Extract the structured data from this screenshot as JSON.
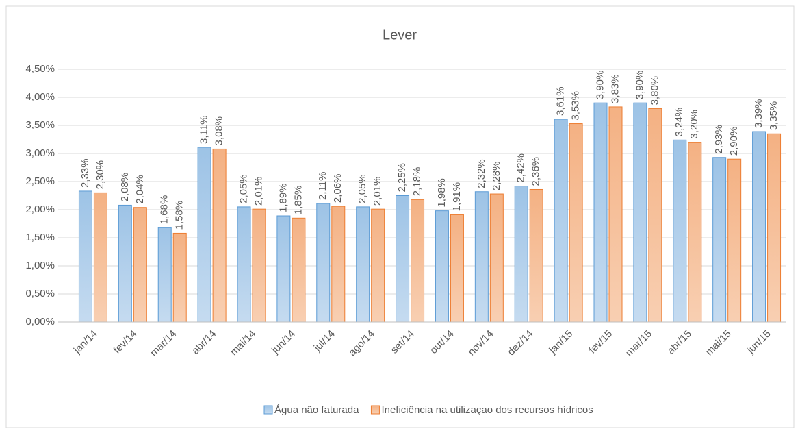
{
  "chart_data": {
    "type": "bar",
    "title": "Lever",
    "categories": [
      "jan/14",
      "fev/14",
      "mar/14",
      "abr/14",
      "mai/14",
      "jun/14",
      "jul/14",
      "ago/14",
      "set/14",
      "out/14",
      "nov/14",
      "dez/14",
      "jan/15",
      "fev/15",
      "mar/15",
      "abr/15",
      "mai/15",
      "jun/15"
    ],
    "series": [
      {
        "name": "Água não faturada",
        "color": "#9dc3e6",
        "values": [
          2.33,
          2.08,
          1.68,
          3.11,
          2.05,
          1.89,
          2.11,
          2.05,
          2.25,
          1.98,
          2.32,
          2.42,
          3.61,
          3.9,
          3.9,
          3.24,
          2.93,
          3.39
        ],
        "value_labels": [
          "2,33%",
          "2,08%",
          "1,68%",
          "3,11%",
          "2,05%",
          "1,89%",
          "2,11%",
          "2,05%",
          "2,25%",
          "1,98%",
          "2,32%",
          "2,42%",
          "3,61%",
          "3,90%",
          "3,90%",
          "3,24%",
          "2,93%",
          "3,39%"
        ]
      },
      {
        "name": "Ineficiência na utilizaçao dos recursos hídricos",
        "color": "#f4b183",
        "values": [
          2.3,
          2.04,
          1.58,
          3.08,
          2.01,
          1.85,
          2.06,
          2.01,
          2.18,
          1.91,
          2.28,
          2.36,
          3.53,
          3.83,
          3.8,
          3.2,
          2.9,
          3.35
        ],
        "value_labels": [
          "2,30%",
          "2,04%",
          "1,58%",
          "3,08%",
          "2,01%",
          "1,85%",
          "2,06%",
          "2,01%",
          "2,18%",
          "1,91%",
          "2,28%",
          "2,36%",
          "3,53%",
          "3,83%",
          "3,80%",
          "3,20%",
          "2,90%",
          "3,35%"
        ]
      }
    ],
    "ylim": [
      0,
      4.5
    ],
    "yticks": [
      {
        "value": 0,
        "label": "0,00%"
      },
      {
        "value": 0.5,
        "label": "0,50%"
      },
      {
        "value": 1,
        "label": "1,00%"
      },
      {
        "value": 1.5,
        "label": "1,50%"
      },
      {
        "value": 2,
        "label": "2,00%"
      },
      {
        "value": 2.5,
        "label": "2,50%"
      },
      {
        "value": 3,
        "label": "3,00%"
      },
      {
        "value": 3.5,
        "label": "3,50%"
      },
      {
        "value": 4,
        "label": "4,00%"
      },
      {
        "value": 4.5,
        "label": "4,50%"
      }
    ],
    "grid": true,
    "legend": "bottom"
  }
}
